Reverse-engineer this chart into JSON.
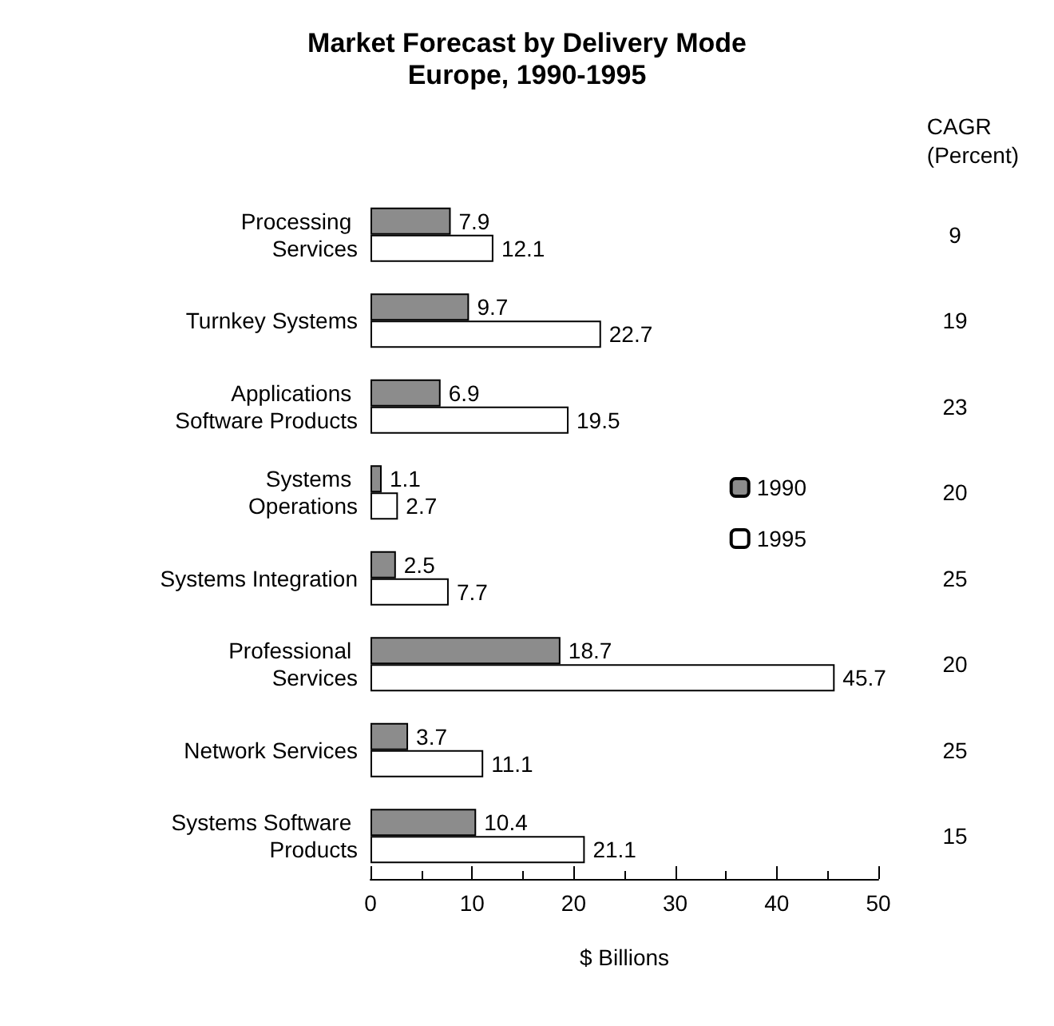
{
  "chart_data": {
    "type": "bar",
    "orientation": "horizontal",
    "title": "Market Forecast by Delivery Mode\nEurope, 1990-1995",
    "xlabel": "$ Billions",
    "categories": [
      "Processing Services",
      "Turnkey Systems",
      "Applications Software Products",
      "Systems Operations",
      "Systems Integration",
      "Professional Services",
      "Network Services",
      "Systems Software Products"
    ],
    "series": [
      {
        "name": "1990",
        "color": "#8c8c8c",
        "values": [
          7.9,
          9.7,
          6.9,
          1.1,
          2.5,
          18.7,
          3.7,
          10.4
        ]
      },
      {
        "name": "1995",
        "color": "#ffffff",
        "values": [
          12.1,
          22.7,
          19.5,
          2.7,
          7.7,
          45.7,
          11.1,
          21.1
        ]
      }
    ],
    "xlim": [
      0,
      50
    ],
    "xticks": [
      0,
      10,
      20,
      30,
      40,
      50
    ],
    "data_labels": true,
    "legend": "right",
    "grid": false,
    "annotations": [
      "CAGR\n(Percent)",
      "9",
      "19",
      "23",
      "20",
      "25",
      "20",
      "25",
      "15"
    ]
  }
}
